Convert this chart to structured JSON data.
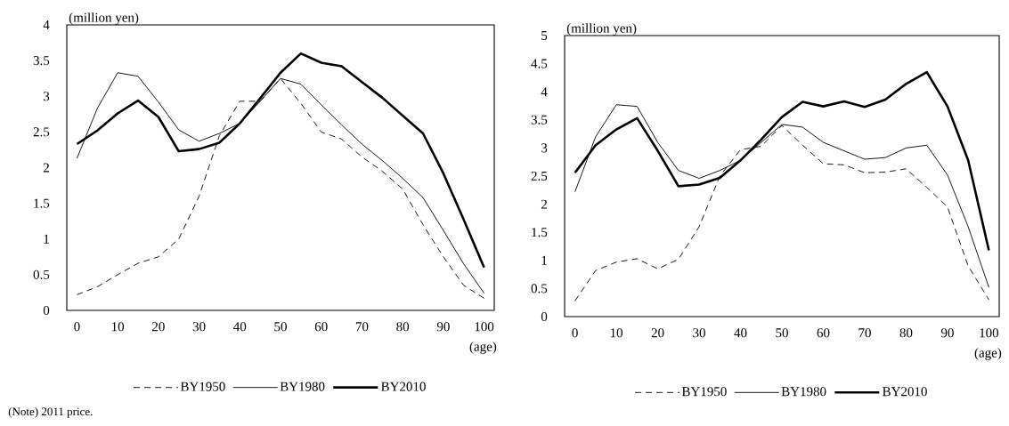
{
  "chart_data": [
    {
      "type": "line",
      "x": [
        0,
        5,
        10,
        15,
        20,
        25,
        30,
        35,
        40,
        45,
        50,
        55,
        60,
        65,
        70,
        75,
        80,
        85,
        90,
        95,
        100
      ],
      "xlabel": "(age)",
      "ylabel": "(million yen)",
      "xlim": [
        -2.5,
        102.5
      ],
      "xticks": [
        0,
        10,
        20,
        30,
        40,
        50,
        60,
        70,
        80,
        90,
        100
      ],
      "ylim": [
        0,
        4
      ],
      "yticks": [
        0,
        0.5,
        1,
        1.5,
        2,
        2.5,
        3,
        3.5,
        4
      ],
      "legend": "bottom",
      "grid": false,
      "series": [
        {
          "name": "BY1950",
          "color": "#000000",
          "line_style": "dashed",
          "values": [
            0.22,
            0.33,
            0.5,
            0.66,
            0.75,
            1.0,
            1.6,
            2.45,
            2.93,
            2.93,
            3.25,
            2.9,
            2.5,
            2.4,
            2.15,
            1.95,
            1.7,
            1.2,
            0.75,
            0.35,
            0.17
          ]
        },
        {
          "name": "BY1980",
          "color": "#000000",
          "line_style": "solid",
          "values": [
            2.13,
            2.83,
            3.33,
            3.28,
            2.92,
            2.53,
            2.37,
            2.48,
            2.62,
            2.93,
            3.25,
            3.17,
            2.88,
            2.6,
            2.33,
            2.1,
            1.85,
            1.58,
            1.12,
            0.65,
            0.24
          ]
        },
        {
          "name": "BY2010",
          "color": "#000000",
          "line_style": "solid",
          "values": [
            2.33,
            2.52,
            2.76,
            2.94,
            2.71,
            2.23,
            2.26,
            2.35,
            2.62,
            2.97,
            3.33,
            3.6,
            3.47,
            3.42,
            3.2,
            2.98,
            2.73,
            2.48,
            1.92,
            1.27,
            0.6
          ]
        }
      ],
      "annotations": [
        "(Note) 2011 price."
      ]
    },
    {
      "type": "line",
      "x": [
        0,
        5,
        10,
        15,
        20,
        25,
        30,
        35,
        40,
        45,
        50,
        55,
        60,
        65,
        70,
        75,
        80,
        85,
        90,
        95,
        100
      ],
      "xlabel": "(age)",
      "ylabel": "(million yen)",
      "xlim": [
        -2.5,
        102.5
      ],
      "xticks": [
        0,
        10,
        20,
        30,
        40,
        50,
        60,
        70,
        80,
        90,
        100
      ],
      "ylim": [
        0,
        5
      ],
      "yticks": [
        0,
        0.5,
        1,
        1.5,
        2,
        2.5,
        3,
        3.5,
        4,
        4.5,
        5
      ],
      "legend": "bottom",
      "grid": false,
      "series": [
        {
          "name": "BY1950",
          "color": "#000000",
          "line_style": "dashed",
          "values": [
            0.28,
            0.82,
            0.97,
            1.03,
            0.85,
            1.02,
            1.6,
            2.5,
            2.97,
            3.03,
            3.4,
            3.05,
            2.72,
            2.7,
            2.56,
            2.57,
            2.63,
            2.3,
            1.95,
            0.9,
            0.3
          ]
        },
        {
          "name": "BY1980",
          "color": "#000000",
          "line_style": "solid",
          "values": [
            2.22,
            3.2,
            3.77,
            3.74,
            3.1,
            2.6,
            2.46,
            2.6,
            2.78,
            3.1,
            3.42,
            3.37,
            3.1,
            2.95,
            2.8,
            2.83,
            3.0,
            3.05,
            2.52,
            1.6,
            0.52
          ]
        },
        {
          "name": "BY2010",
          "color": "#000000",
          "line_style": "solid",
          "values": [
            2.56,
            3.05,
            3.33,
            3.53,
            2.95,
            2.32,
            2.35,
            2.47,
            2.78,
            3.15,
            3.55,
            3.82,
            3.74,
            3.83,
            3.73,
            3.86,
            4.14,
            4.35,
            3.74,
            2.78,
            1.18
          ]
        }
      ]
    }
  ]
}
